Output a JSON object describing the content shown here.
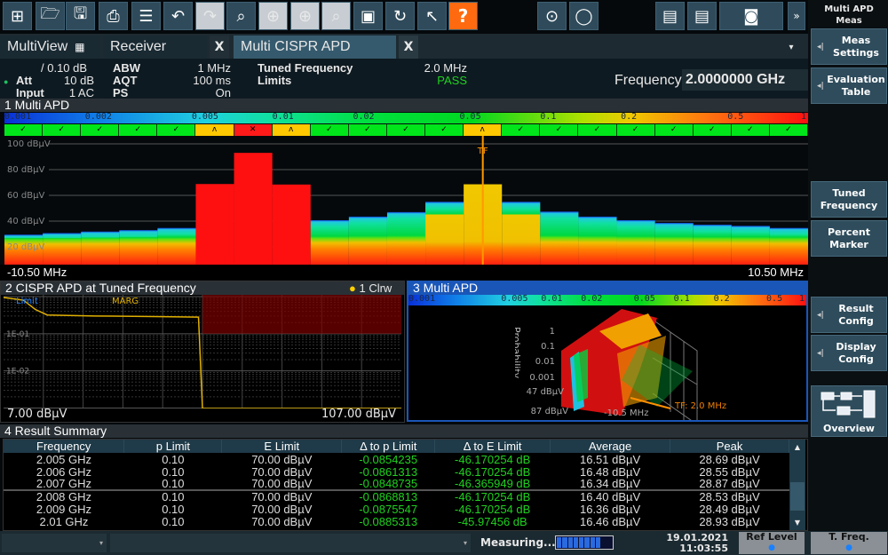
{
  "toolbar": {
    "icons": [
      "windows-icon",
      "open-folder-icon",
      "save-icon",
      "print-icon",
      "document-icon",
      "undo-icon",
      "redo-icon",
      "zoom-select-icon",
      "zoom-in-icon",
      "multi-zoom-icon",
      "zoom-1to1-icon",
      "full-screen-icon",
      "refresh-icon",
      "help-pointer-icon",
      "help-icon",
      "sequencer-icon",
      "single-sweep-icon",
      "delete-window-icon",
      "add-window-icon",
      "screenshot-icon",
      "more-icon"
    ],
    "help_glyph": "?",
    "more_glyph": "»"
  },
  "tabs": [
    {
      "label": "MultiView"
    },
    {
      "label": "Receiver",
      "close": "X"
    },
    {
      "label": "Multi CISPR APD",
      "close": "X"
    }
  ],
  "tabs_menu": "▾",
  "info": {
    "ref_offset": "/ 0.10 dB",
    "att_label": "Att",
    "att": "10 dB",
    "input_label": "Input",
    "input": "1 AC",
    "abw_label": "ABW",
    "abw": "1 MHz",
    "aqt_label": "AQT",
    "aqt": "100 ms",
    "ps_label": "PS",
    "ps": "On",
    "tf_label": "Tuned Frequency",
    "tf": "2.0 MHz",
    "limits_label": "Limits",
    "limits": "PASS",
    "freq_label": "Frequency",
    "freq_value": "2.0000000 GHz"
  },
  "sidebar": {
    "title": "Multi APD Meas",
    "items": [
      "Meas Settings",
      "Evaluation Table",
      "Tuned Frequency",
      "Percent Marker",
      "Result Config",
      "Display Config",
      "Overview"
    ]
  },
  "colors": {
    "pass": "#00e61a",
    "warn": "#ffc800",
    "fail": "#ff1a1a",
    "trace": "#e0b000",
    "accent": "#1a56b8"
  },
  "scale_ticks": [
    "0.001",
    "0.002",
    "0.005",
    "0.01",
    "0.02",
    "0.05",
    "0.1",
    "0.2",
    "0.5",
    "1"
  ],
  "scale_ticks_small": [
    "0.001",
    "0.005",
    "0.01",
    "0.02",
    "0.05",
    "0.1",
    "0.2",
    "0.5",
    "1"
  ],
  "chart_data": [
    {
      "type": "bar",
      "title": "1 Multi APD",
      "y_unit": "dBµV",
      "ylim": [
        0,
        105
      ],
      "yticks": [
        "100 dBµV",
        "80 dBµV",
        "60 dBµV",
        "40 dBµV",
        "20 dBµV"
      ],
      "ytick_values": [
        100,
        80,
        60,
        40,
        20
      ],
      "x_start": "-10.50 MHz",
      "x_stop": "10.50 MHz",
      "marker_label": "TF",
      "marker_segment": 13,
      "status_glyphs": {
        "pass": "✓",
        "warn": "ʌ",
        "fail": "✕"
      },
      "segments": [
        {
          "level": 29.5,
          "status": "pass"
        },
        {
          "level": 30.7,
          "status": "pass"
        },
        {
          "level": 31.9,
          "status": "pass"
        },
        {
          "level": 33,
          "status": "pass"
        },
        {
          "level": 34.7,
          "status": "pass"
        },
        {
          "level": 68.8,
          "status": "warn"
        },
        {
          "level": 93,
          "status": "fail"
        },
        {
          "level": 68.4,
          "status": "warn"
        },
        {
          "level": 40.7,
          "status": "pass"
        },
        {
          "level": 43.5,
          "status": "pass"
        },
        {
          "level": 47,
          "status": "pass"
        },
        {
          "level": 55,
          "status": "pass",
          "yellow_to": 44
        },
        {
          "level": 68.6,
          "status": "warn"
        },
        {
          "level": 55,
          "status": "pass",
          "yellow_to": 44
        },
        {
          "level": 47.4,
          "status": "pass"
        },
        {
          "level": 43.5,
          "status": "pass"
        },
        {
          "level": 40.7,
          "status": "pass"
        },
        {
          "level": 38.6,
          "status": "pass"
        },
        {
          "level": 37.2,
          "status": "pass"
        },
        {
          "level": 36.3,
          "status": "pass"
        },
        {
          "level": 34.7,
          "status": "pass"
        }
      ]
    },
    {
      "type": "line",
      "title": "2 CISPR APD at Tuned Frequency",
      "trace_label": "1 Clrw",
      "limit_label": "Limit",
      "margin_label": "MARG",
      "x_start": "7.00 dBµV",
      "x_stop": "107.00 dBµV",
      "yticks": [
        "1E-01",
        "1E-02"
      ],
      "ylog": true,
      "trace": [
        [
          7,
          0.95
        ],
        [
          12,
          0.8
        ],
        [
          15,
          0.45
        ],
        [
          18,
          0.32
        ],
        [
          30,
          0.3
        ],
        [
          45,
          0.29
        ],
        [
          56,
          0.28
        ],
        [
          57,
          0.0001
        ],
        [
          107,
          0.0001
        ]
      ]
    },
    {
      "type": "surface3d",
      "title": "3 Multi APD",
      "zaxis_label": "Probability",
      "zticks": [
        "1",
        "0.1",
        "0.01",
        "0.001"
      ],
      "level_ticks": [
        "47 dBµV",
        "87 dBµV"
      ],
      "freq_tick": "-10.5 MHz",
      "marker_label": "TF: 2.0 MHz"
    }
  ],
  "result_summary": {
    "title": "4 Result Summary",
    "columns": [
      "Frequency",
      "p Limit",
      "E Limit",
      "Δ to p Limit",
      "Δ to E Limit",
      "Average",
      "Peak"
    ],
    "rows": [
      [
        "2.005 GHz",
        "0.10",
        "70.00 dBµV",
        "-0.0854235",
        "-46.170254 dB",
        "16.51 dBµV",
        "28.69 dBµV"
      ],
      [
        "2.006 GHz",
        "0.10",
        "70.00 dBµV",
        "-0.0861313",
        "-46.170254 dB",
        "16.48 dBµV",
        "28.55 dBµV"
      ],
      [
        "2.007 GHz",
        "0.10",
        "70.00 dBµV",
        "-0.0848735",
        "-46.365949 dB",
        "16.34 dBµV",
        "28.87 dBµV"
      ],
      [
        "2.008 GHz",
        "0.10",
        "70.00 dBµV",
        "-0.0868813",
        "-46.170254 dB",
        "16.40 dBµV",
        "28.53 dBµV"
      ],
      [
        "2.009 GHz",
        "0.10",
        "70.00 dBµV",
        "-0.0875547",
        "-46.170254 dB",
        "16.36 dBµV",
        "28.49 dBµV"
      ],
      [
        "2.01 GHz",
        "0.10",
        "70.00 dBµV",
        "-0.0885313",
        "-45.97456 dB",
        "16.46 dBµV",
        "28.93 dBµV"
      ]
    ]
  },
  "status": {
    "measuring": "Measuring...",
    "progress": 0.8,
    "date": "19.01.2021",
    "time": "11:03:55",
    "ref_level": "Ref Level",
    "t_freq": "T. Freq."
  }
}
